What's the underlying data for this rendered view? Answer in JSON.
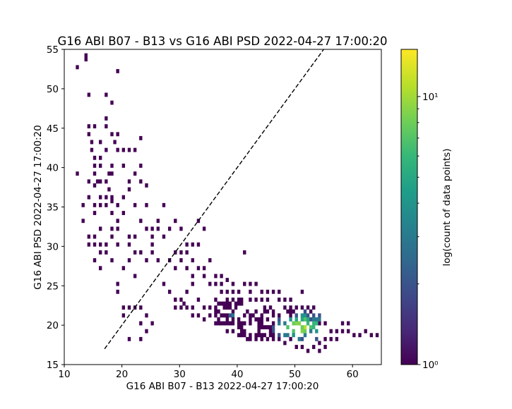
{
  "chart_data": {
    "type": "heatmap",
    "title": "G16 ABI B07 - B13 vs G16 ABI PSD  2022-04-27 17:00:20",
    "xlabel": "G16 ABI B07 - B13 2022-04-27 17:00:20",
    "ylabel": "G16 ABI PSD  2022-04-27 17:00:20",
    "xlim": [
      10,
      65
    ],
    "ylim": [
      15,
      55
    ],
    "xticks": [
      10,
      20,
      30,
      40,
      50,
      60
    ],
    "yticks": [
      15,
      20,
      25,
      30,
      35,
      40,
      45,
      50,
      55
    ],
    "grid": false,
    "bin_size": [
      0.5,
      0.5
    ],
    "reference_line": {
      "style": "dashed",
      "color": "#000000",
      "x": [
        17,
        55
      ],
      "y": [
        17,
        55
      ]
    },
    "colorbar": {
      "label": "log(count of data points)",
      "scale": "log",
      "range": [
        1,
        15
      ],
      "ticks": [
        {
          "value": 1,
          "label": "10⁰"
        },
        {
          "value": 10,
          "label": "10¹"
        }
      ],
      "colormap": [
        "#440154",
        "#482878",
        "#3e4a89",
        "#31688e",
        "#26828e",
        "#1f9e89",
        "#35b779",
        "#6ece58",
        "#b5de2b",
        "#fde725"
      ]
    },
    "dense_regions": [
      {
        "x": [
          40.5,
          54
        ],
        "y": [
          18,
          22
        ],
        "count": 120,
        "max": 14,
        "peak": [
          51,
          19.5
        ]
      },
      {
        "x": [
          36,
          41
        ],
        "y": [
          19.5,
          23
        ],
        "count": 40,
        "max": 3,
        "peak": [
          39,
          21
        ]
      }
    ],
    "points": [
      [
        12,
        39
      ],
      [
        12,
        52.5
      ],
      [
        13.5,
        53.5
      ],
      [
        13.5,
        54
      ],
      [
        14,
        49
      ],
      [
        14,
        45
      ],
      [
        14,
        44
      ],
      [
        15,
        45
      ],
      [
        14.5,
        43
      ],
      [
        14.5,
        42
      ],
      [
        15,
        41
      ],
      [
        15,
        40
      ],
      [
        15,
        37.5
      ],
      [
        15,
        35
      ],
      [
        16,
        36
      ],
      [
        16,
        35
      ],
      [
        16,
        43
      ],
      [
        16,
        41
      ],
      [
        15.5,
        38
      ],
      [
        16,
        38
      ],
      [
        17,
        46
      ],
      [
        17,
        45
      ],
      [
        17,
        36
      ],
      [
        17,
        35
      ],
      [
        17,
        42
      ],
      [
        17.5,
        39
      ],
      [
        17.5,
        37
      ],
      [
        18,
        36
      ],
      [
        18,
        34
      ],
      [
        18,
        40
      ],
      [
        17,
        49
      ],
      [
        18,
        48
      ],
      [
        18,
        44
      ],
      [
        18.5,
        43
      ],
      [
        19,
        52
      ],
      [
        19,
        44
      ],
      [
        19,
        42
      ],
      [
        20,
        42
      ],
      [
        20,
        40
      ],
      [
        21,
        42
      ],
      [
        21,
        38
      ],
      [
        22,
        42
      ],
      [
        22,
        39
      ],
      [
        23,
        43.5
      ],
      [
        23,
        40
      ],
      [
        23,
        38
      ],
      [
        24,
        37.5
      ],
      [
        24,
        35
      ],
      [
        24,
        32
      ],
      [
        21,
        37
      ],
      [
        22,
        35
      ],
      [
        23,
        33
      ],
      [
        20,
        34
      ],
      [
        21,
        31
      ],
      [
        22,
        31
      ],
      [
        19,
        33
      ],
      [
        19,
        32
      ],
      [
        18,
        31
      ],
      [
        16,
        32
      ],
      [
        15,
        31
      ],
      [
        14,
        31
      ],
      [
        14,
        30
      ],
      [
        15,
        30
      ],
      [
        16,
        30
      ],
      [
        17,
        30
      ],
      [
        18,
        32
      ],
      [
        19,
        30
      ],
      [
        21,
        28
      ],
      [
        20,
        27
      ],
      [
        22,
        26
      ],
      [
        19,
        25
      ],
      [
        19,
        24
      ],
      [
        20,
        22
      ],
      [
        20,
        21
      ],
      [
        21,
        22
      ],
      [
        22,
        22
      ],
      [
        23,
        22
      ],
      [
        24,
        21
      ],
      [
        25,
        20
      ],
      [
        23,
        20
      ],
      [
        24,
        19
      ],
      [
        21,
        18
      ],
      [
        23,
        18
      ],
      [
        25,
        32
      ],
      [
        25,
        31
      ],
      [
        26,
        33
      ],
      [
        26,
        32
      ],
      [
        27,
        35
      ],
      [
        27,
        31
      ],
      [
        28,
        32
      ],
      [
        29,
        33
      ],
      [
        30,
        32
      ],
      [
        31,
        30
      ],
      [
        31,
        29
      ],
      [
        32,
        30
      ],
      [
        32,
        28
      ],
      [
        33,
        33
      ],
      [
        33,
        30
      ],
      [
        34,
        32
      ],
      [
        34,
        27
      ],
      [
        35,
        28
      ],
      [
        35,
        25
      ],
      [
        36,
        25
      ],
      [
        37,
        25
      ],
      [
        37,
        24
      ],
      [
        38,
        24
      ],
      [
        38,
        23
      ],
      [
        39,
        23
      ],
      [
        40,
        24
      ],
      [
        40,
        23
      ],
      [
        41,
        29
      ],
      [
        42,
        24
      ],
      [
        42,
        23
      ],
      [
        43,
        23
      ],
      [
        44,
        23
      ],
      [
        45,
        23
      ],
      [
        45,
        24
      ],
      [
        47,
        23
      ],
      [
        48,
        23
      ],
      [
        49,
        22
      ],
      [
        50,
        22
      ],
      [
        51,
        24
      ],
      [
        52,
        21
      ],
      [
        53,
        21
      ],
      [
        54,
        20
      ],
      [
        55,
        20
      ],
      [
        56,
        19
      ],
      [
        57,
        19
      ],
      [
        58,
        19
      ],
      [
        59,
        19
      ],
      [
        60,
        18.5
      ],
      [
        61,
        18.5
      ],
      [
        62,
        19
      ],
      [
        63,
        18.5
      ],
      [
        64,
        18.5
      ],
      [
        28,
        24
      ],
      [
        29,
        23
      ],
      [
        29,
        22
      ],
      [
        30,
        22
      ],
      [
        30,
        23
      ],
      [
        30.5,
        22.5
      ],
      [
        31,
        22
      ],
      [
        32,
        21
      ],
      [
        32,
        22
      ],
      [
        33,
        21
      ],
      [
        33,
        23
      ],
      [
        34,
        22
      ],
      [
        35,
        21
      ],
      [
        36,
        21
      ],
      [
        35,
        22
      ],
      [
        34,
        20.5
      ],
      [
        36,
        20
      ],
      [
        37,
        20
      ],
      [
        38,
        19
      ],
      [
        39,
        19
      ],
      [
        40,
        18.5
      ],
      [
        31,
        24
      ],
      [
        32,
        25
      ],
      [
        33,
        27
      ],
      [
        34,
        26
      ],
      [
        32,
        26
      ],
      [
        31,
        27
      ],
      [
        30,
        28
      ],
      [
        29,
        27
      ],
      [
        28,
        28
      ],
      [
        27,
        31
      ],
      [
        29,
        29
      ],
      [
        30,
        29
      ],
      [
        26,
        28
      ],
      [
        27,
        25
      ],
      [
        36,
        26
      ],
      [
        37,
        26
      ],
      [
        38,
        25.5
      ],
      [
        39,
        25
      ],
      [
        39,
        24
      ],
      [
        41,
        25
      ],
      [
        42,
        25
      ],
      [
        43,
        25
      ],
      [
        44,
        24
      ],
      [
        46,
        24
      ],
      [
        47,
        24
      ],
      [
        48,
        22
      ],
      [
        49,
        23
      ],
      [
        50,
        21
      ],
      [
        52,
        22
      ],
      [
        53,
        22
      ],
      [
        52,
        16.5
      ],
      [
        53,
        17
      ],
      [
        54,
        17.5
      ],
      [
        55,
        18
      ],
      [
        56,
        18
      ],
      [
        57,
        18
      ],
      [
        58,
        20
      ],
      [
        59,
        20
      ],
      [
        55,
        17
      ],
      [
        54,
        16.5
      ],
      [
        51,
        17
      ],
      [
        50,
        17
      ],
      [
        49,
        18
      ],
      [
        48,
        17.5
      ],
      [
        47,
        18
      ],
      [
        46,
        18
      ],
      [
        45,
        18
      ],
      [
        44,
        18
      ],
      [
        43,
        18
      ],
      [
        42,
        18
      ],
      [
        41,
        18.5
      ],
      [
        36,
        22
      ],
      [
        37,
        22.5
      ],
      [
        38,
        22
      ],
      [
        37,
        21
      ],
      [
        38,
        21
      ],
      [
        39,
        20
      ],
      [
        40,
        20
      ],
      [
        41,
        20
      ],
      [
        22,
        29
      ],
      [
        21,
        30
      ],
      [
        23,
        29
      ],
      [
        25,
        29
      ],
      [
        25,
        30
      ],
      [
        24,
        28
      ],
      [
        18,
        28
      ],
      [
        17,
        29
      ],
      [
        16,
        29
      ],
      [
        16,
        27
      ],
      [
        15,
        28
      ],
      [
        20,
        36
      ],
      [
        19,
        35
      ],
      [
        18,
        35.5
      ],
      [
        15,
        34
      ],
      [
        14,
        36
      ],
      [
        13,
        35
      ],
      [
        13,
        33
      ],
      [
        14,
        38
      ],
      [
        15,
        39
      ],
      [
        16,
        40
      ],
      [
        17,
        38
      ],
      [
        18,
        39
      ]
    ]
  }
}
